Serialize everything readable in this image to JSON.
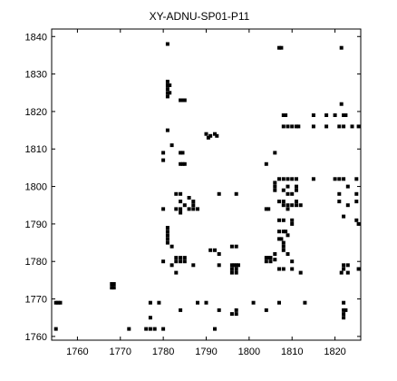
{
  "chart_data": {
    "type": "scatter",
    "title": "XY-ADNU-SP01-P11",
    "xlabel": "",
    "ylabel": "",
    "xlim": [
      1754,
      1826
    ],
    "ylim": [
      1759,
      1842
    ],
    "xticks": [
      1760,
      1770,
      1780,
      1790,
      1800,
      1810,
      1820
    ],
    "yticks": [
      1760,
      1770,
      1780,
      1790,
      1800,
      1810,
      1820,
      1830,
      1840
    ],
    "grid": false,
    "marker_color": "#000000",
    "points": [
      [
        1781,
        1838
      ],
      [
        1807,
        1837
      ],
      [
        1807.5,
        1837
      ],
      [
        1821.5,
        1837
      ],
      [
        1781,
        1828
      ],
      [
        1781,
        1827
      ],
      [
        1781,
        1826
      ],
      [
        1781,
        1825
      ],
      [
        1781,
        1824
      ],
      [
        1781.5,
        1827
      ],
      [
        1781.5,
        1825
      ],
      [
        1784,
        1823
      ],
      [
        1784.5,
        1823
      ],
      [
        1785,
        1823
      ],
      [
        1821.5,
        1822
      ],
      [
        1808,
        1819
      ],
      [
        1808.5,
        1819
      ],
      [
        1815,
        1819
      ],
      [
        1818,
        1819
      ],
      [
        1820,
        1819
      ],
      [
        1822,
        1819
      ],
      [
        1822.5,
        1819
      ],
      [
        1808,
        1816
      ],
      [
        1809,
        1816
      ],
      [
        1810,
        1816
      ],
      [
        1811,
        1816
      ],
      [
        1811.5,
        1816
      ],
      [
        1815,
        1816
      ],
      [
        1818,
        1816
      ],
      [
        1821,
        1816
      ],
      [
        1822,
        1816
      ],
      [
        1824,
        1816
      ],
      [
        1825.5,
        1816
      ],
      [
        1781,
        1815
      ],
      [
        1790,
        1814
      ],
      [
        1791,
        1813.5
      ],
      [
        1792,
        1814
      ],
      [
        1792.5,
        1813.5
      ],
      [
        1790.5,
        1813
      ],
      [
        1782,
        1811
      ],
      [
        1780,
        1809
      ],
      [
        1784,
        1809
      ],
      [
        1784.5,
        1809
      ],
      [
        1806,
        1809
      ],
      [
        1780,
        1807
      ],
      [
        1784,
        1806
      ],
      [
        1784.5,
        1806
      ],
      [
        1785,
        1806
      ],
      [
        1804,
        1806
      ],
      [
        1807,
        1802
      ],
      [
        1808,
        1802
      ],
      [
        1809,
        1802
      ],
      [
        1810,
        1802
      ],
      [
        1811,
        1802
      ],
      [
        1815,
        1802
      ],
      [
        1820,
        1802
      ],
      [
        1821,
        1802
      ],
      [
        1822,
        1802
      ],
      [
        1825,
        1802
      ],
      [
        1806,
        1801
      ],
      [
        1806,
        1800
      ],
      [
        1809,
        1800
      ],
      [
        1811,
        1800
      ],
      [
        1823,
        1800
      ],
      [
        1806,
        1799
      ],
      [
        1808,
        1799
      ],
      [
        1811,
        1799
      ],
      [
        1783,
        1798
      ],
      [
        1784,
        1798
      ],
      [
        1793,
        1798
      ],
      [
        1797,
        1798
      ],
      [
        1809,
        1798
      ],
      [
        1810,
        1798
      ],
      [
        1821,
        1798
      ],
      [
        1825,
        1798
      ],
      [
        1786,
        1797
      ],
      [
        1784,
        1796
      ],
      [
        1787,
        1796
      ],
      [
        1807,
        1796
      ],
      [
        1808,
        1796
      ],
      [
        1811,
        1796
      ],
      [
        1821,
        1796
      ],
      [
        1825,
        1796
      ],
      [
        1785,
        1795
      ],
      [
        1787,
        1795
      ],
      [
        1808,
        1795
      ],
      [
        1809,
        1795
      ],
      [
        1810,
        1795
      ],
      [
        1811,
        1795
      ],
      [
        1812,
        1795
      ],
      [
        1823,
        1795
      ],
      [
        1780,
        1794
      ],
      [
        1783,
        1794
      ],
      [
        1784,
        1794
      ],
      [
        1786,
        1794
      ],
      [
        1787,
        1794
      ],
      [
        1788,
        1794
      ],
      [
        1804,
        1794
      ],
      [
        1804.5,
        1794
      ],
      [
        1809,
        1794
      ],
      [
        1784,
        1793
      ],
      [
        1822,
        1792
      ],
      [
        1807,
        1791
      ],
      [
        1808,
        1791
      ],
      [
        1810,
        1791
      ],
      [
        1825,
        1791
      ],
      [
        1810,
        1790
      ],
      [
        1825.5,
        1790
      ],
      [
        1781,
        1789
      ],
      [
        1781,
        1788
      ],
      [
        1807,
        1788
      ],
      [
        1808,
        1788
      ],
      [
        1808.5,
        1788
      ],
      [
        1781,
        1787
      ],
      [
        1809,
        1787
      ],
      [
        1781,
        1786
      ],
      [
        1807,
        1786
      ],
      [
        1807.5,
        1786
      ],
      [
        1781,
        1785
      ],
      [
        1808,
        1785
      ],
      [
        1782,
        1784
      ],
      [
        1796,
        1784
      ],
      [
        1797,
        1784
      ],
      [
        1808,
        1784
      ],
      [
        1808,
        1783
      ],
      [
        1791,
        1783
      ],
      [
        1792,
        1783
      ],
      [
        1793,
        1782
      ],
      [
        1806,
        1782
      ],
      [
        1809,
        1782
      ],
      [
        1783,
        1781
      ],
      [
        1784,
        1781
      ],
      [
        1785,
        1781
      ],
      [
        1804,
        1781
      ],
      [
        1804.5,
        1781
      ],
      [
        1805,
        1781
      ],
      [
        1806,
        1780.5
      ],
      [
        1780,
        1780
      ],
      [
        1783,
        1780
      ],
      [
        1784,
        1780
      ],
      [
        1785,
        1780
      ],
      [
        1804,
        1780
      ],
      [
        1805,
        1780
      ],
      [
        1810,
        1780
      ],
      [
        1782,
        1779
      ],
      [
        1787,
        1779
      ],
      [
        1793,
        1779
      ],
      [
        1796,
        1779
      ],
      [
        1796.5,
        1779
      ],
      [
        1797,
        1779
      ],
      [
        1797.5,
        1779
      ],
      [
        1822,
        1779
      ],
      [
        1823,
        1779
      ],
      [
        1796,
        1778
      ],
      [
        1797,
        1778
      ],
      [
        1807,
        1778
      ],
      [
        1808,
        1778
      ],
      [
        1810,
        1778
      ],
      [
        1822,
        1778
      ],
      [
        1825.5,
        1778
      ],
      [
        1783,
        1777
      ],
      [
        1796,
        1777
      ],
      [
        1797,
        1777
      ],
      [
        1812,
        1777
      ],
      [
        1821.5,
        1777
      ],
      [
        1823,
        1777
      ],
      [
        1768,
        1774
      ],
      [
        1768.5,
        1774
      ],
      [
        1768,
        1773
      ],
      [
        1768.5,
        1773
      ],
      [
        1755,
        1769
      ],
      [
        1755.5,
        1769
      ],
      [
        1756,
        1769
      ],
      [
        1777,
        1769
      ],
      [
        1779,
        1769
      ],
      [
        1788,
        1769
      ],
      [
        1790,
        1769
      ],
      [
        1801,
        1769
      ],
      [
        1807,
        1769
      ],
      [
        1813,
        1769
      ],
      [
        1822,
        1769
      ],
      [
        1784,
        1767
      ],
      [
        1793,
        1767
      ],
      [
        1797,
        1767
      ],
      [
        1804,
        1767
      ],
      [
        1822,
        1767
      ],
      [
        1822.5,
        1767
      ],
      [
        1796,
        1766
      ],
      [
        1797,
        1766
      ],
      [
        1822,
        1766
      ],
      [
        1777,
        1765
      ],
      [
        1822,
        1765
      ],
      [
        1755,
        1762
      ],
      [
        1772,
        1762
      ],
      [
        1776,
        1762
      ],
      [
        1777,
        1762
      ],
      [
        1778,
        1762
      ],
      [
        1780,
        1762
      ],
      [
        1792,
        1762
      ]
    ]
  }
}
